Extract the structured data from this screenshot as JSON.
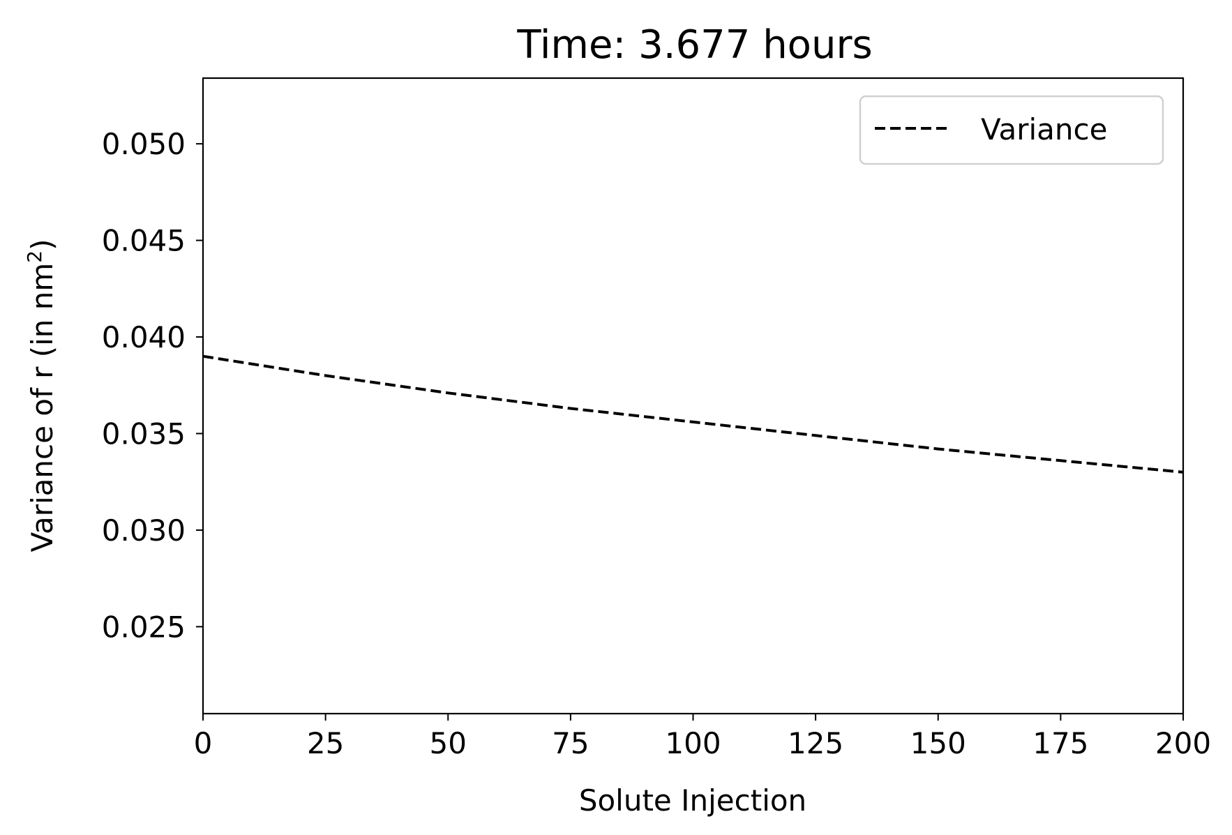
{
  "chart_data": {
    "type": "line",
    "title": "Time: 3.677 hours",
    "xlabel": "Solute Injection",
    "ylabel_main": "Variance of r (in nm",
    "ylabel_sup": "2",
    "ylabel_tail": ")",
    "xlim": [
      0,
      200
    ],
    "ylim": [
      0.0205,
      0.0534
    ],
    "xticks": [
      0,
      25,
      50,
      75,
      100,
      125,
      150,
      175,
      200
    ],
    "xtick_labels": [
      "0",
      "25",
      "50",
      "75",
      "100",
      "125",
      "150",
      "175",
      "200"
    ],
    "yticks": [
      0.025,
      0.03,
      0.035,
      0.04,
      0.045,
      0.05
    ],
    "ytick_labels": [
      "0.025",
      "0.030",
      "0.035",
      "0.040",
      "0.045",
      "0.050"
    ],
    "grid": false,
    "legend_position": "top-right",
    "series": [
      {
        "name": "Variance",
        "style": "dashed",
        "color": "#000000",
        "x": [
          0,
          25,
          50,
          75,
          100,
          125,
          150,
          175,
          200
        ],
        "y": [
          0.039,
          0.038,
          0.0371,
          0.0363,
          0.0356,
          0.0349,
          0.0342,
          0.0336,
          0.033
        ]
      }
    ]
  }
}
